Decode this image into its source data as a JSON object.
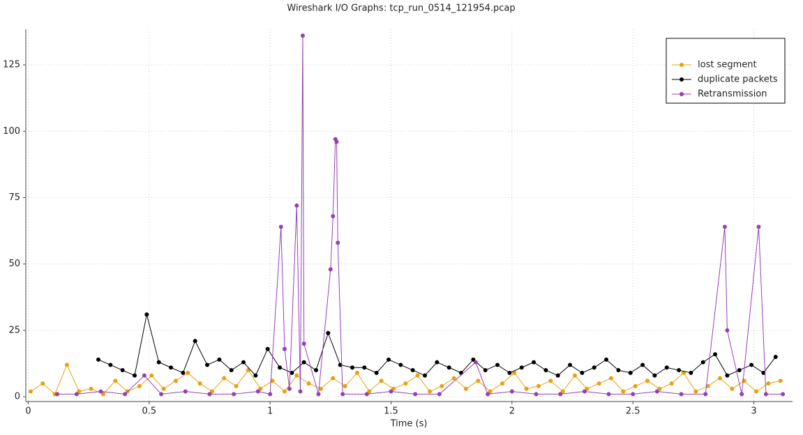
{
  "chart_data": {
    "type": "line",
    "title": "Wireshark I/O Graphs: tcp_run_0514_121954.pcap",
    "xlabel": "Time (s)",
    "xlim": [
      -0.01,
      3.16
    ],
    "ylim": [
      -1.8,
      138.4
    ],
    "xticks": [
      0,
      0.5,
      1,
      1.5,
      2,
      2.5,
      3
    ],
    "yticks": [
      0,
      25,
      50,
      75,
      100,
      125
    ],
    "grid": true,
    "legend": "upper right",
    "series": [
      {
        "name": "lost segment",
        "color": "#e6a10f",
        "x": [
          0.01,
          0.06,
          0.11,
          0.16,
          0.21,
          0.26,
          0.31,
          0.36,
          0.41,
          0.46,
          0.51,
          0.56,
          0.61,
          0.66,
          0.71,
          0.76,
          0.81,
          0.86,
          0.91,
          0.96,
          1.01,
          1.06,
          1.11,
          1.16,
          1.21,
          1.26,
          1.31,
          1.36,
          1.41,
          1.46,
          1.51,
          1.56,
          1.61,
          1.66,
          1.71,
          1.76,
          1.81,
          1.86,
          1.91,
          1.96,
          2.01,
          2.06,
          2.11,
          2.16,
          2.21,
          2.26,
          2.31,
          2.36,
          2.41,
          2.46,
          2.51,
          2.56,
          2.61,
          2.66,
          2.71,
          2.76,
          2.81,
          2.86,
          2.91,
          2.96,
          3.01,
          3.06,
          3.11
        ],
        "values": [
          2,
          5,
          1,
          12,
          2,
          3,
          1,
          6,
          2,
          4,
          8,
          3,
          6,
          9,
          5,
          2,
          7,
          4,
          10,
          3,
          6,
          2,
          8,
          5,
          3,
          7,
          4,
          9,
          2,
          6,
          3,
          5,
          8,
          2,
          4,
          7,
          3,
          6,
          2,
          5,
          9,
          3,
          4,
          6,
          2,
          8,
          3,
          5,
          7,
          2,
          4,
          6,
          3,
          5,
          9,
          2,
          4,
          7,
          3,
          6,
          2,
          5,
          6
        ]
      },
      {
        "name": "duplicate packets",
        "color": "#000000",
        "x": [
          0.29,
          0.34,
          0.39,
          0.44,
          0.49,
          0.54,
          0.59,
          0.64,
          0.69,
          0.74,
          0.79,
          0.84,
          0.89,
          0.94,
          0.99,
          1.04,
          1.09,
          1.14,
          1.19,
          1.24,
          1.29,
          1.34,
          1.39,
          1.44,
          1.49,
          1.54,
          1.59,
          1.64,
          1.69,
          1.74,
          1.79,
          1.84,
          1.89,
          1.94,
          1.99,
          2.04,
          2.09,
          2.14,
          2.19,
          2.24,
          2.29,
          2.34,
          2.39,
          2.44,
          2.49,
          2.54,
          2.59,
          2.64,
          2.69,
          2.74,
          2.79,
          2.84,
          2.89,
          2.94,
          2.99,
          3.04,
          3.09
        ],
        "values": [
          14,
          12,
          10,
          8,
          31,
          13,
          11,
          9,
          21,
          12,
          14,
          10,
          13,
          8,
          18,
          11,
          9,
          13,
          10,
          24,
          12,
          11,
          11,
          9,
          14,
          12,
          10,
          8,
          13,
          11,
          9,
          14,
          10,
          12,
          9,
          11,
          13,
          10,
          8,
          12,
          9,
          11,
          14,
          10,
          9,
          12,
          8,
          11,
          10,
          9,
          13,
          16,
          8,
          10,
          12,
          9,
          15
        ]
      },
      {
        "name": "Retransmission",
        "color": "#9440b4",
        "x": [
          0.12,
          0.2,
          0.3,
          0.4,
          0.48,
          0.55,
          0.65,
          0.75,
          0.85,
          0.95,
          1.0,
          1.045,
          1.06,
          1.08,
          1.11,
          1.125,
          1.135,
          1.14,
          1.2,
          1.25,
          1.26,
          1.27,
          1.275,
          1.28,
          1.3,
          1.4,
          1.5,
          1.6,
          1.7,
          1.85,
          1.9,
          2.0,
          2.1,
          2.2,
          2.3,
          2.4,
          2.5,
          2.6,
          2.7,
          2.8,
          2.88,
          2.89,
          2.95,
          3.02,
          3.05,
          3.12
        ],
        "values": [
          1,
          1,
          2,
          1,
          8,
          1,
          2,
          1,
          1,
          2,
          1,
          64,
          18,
          3,
          72,
          2,
          136,
          20,
          1,
          48,
          68,
          97,
          96,
          58,
          1,
          1,
          2,
          1,
          1,
          13,
          1,
          2,
          1,
          1,
          2,
          1,
          1,
          2,
          1,
          1,
          64,
          25,
          1,
          64,
          1,
          1
        ]
      }
    ]
  }
}
